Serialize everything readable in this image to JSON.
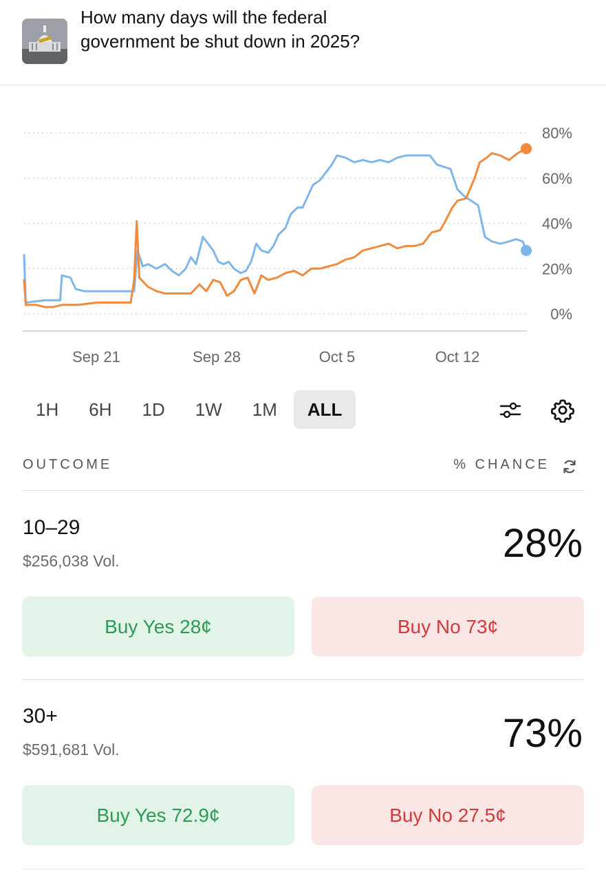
{
  "market": {
    "title": "How many days will the federal government be shut down in 2025?"
  },
  "chart_data": {
    "type": "line",
    "y_ticks": [
      "80%",
      "60%",
      "40%",
      "20%",
      "0%"
    ],
    "x_ticks": [
      {
        "label": "Sep 21",
        "day": 3
      },
      {
        "label": "Sep 28",
        "day": 10
      },
      {
        "label": "Oct 5",
        "day": 17
      },
      {
        "label": "Oct 12",
        "day": 24
      }
    ],
    "ylim": [
      0,
      80
    ],
    "xlim": [
      -1.2,
      28
    ],
    "grid": true,
    "series": [
      {
        "color": "#7fb6ea",
        "points": [
          [
            -1.2,
            26
          ],
          [
            -1.1,
            5
          ],
          [
            0,
            6
          ],
          [
            0.9,
            6
          ],
          [
            1,
            17
          ],
          [
            1.5,
            16
          ],
          [
            1.8,
            11
          ],
          [
            2.3,
            10
          ],
          [
            3,
            10
          ],
          [
            4,
            10
          ],
          [
            5.2,
            10
          ],
          [
            5.4,
            28
          ],
          [
            5.7,
            21
          ],
          [
            6,
            22
          ],
          [
            6.5,
            20
          ],
          [
            7,
            22
          ],
          [
            7.4,
            19
          ],
          [
            7.8,
            17
          ],
          [
            8.2,
            20
          ],
          [
            8.5,
            25
          ],
          [
            8.8,
            22
          ],
          [
            9.2,
            34
          ],
          [
            9.5,
            31
          ],
          [
            9.8,
            28
          ],
          [
            10.1,
            23
          ],
          [
            10.4,
            22
          ],
          [
            10.7,
            23
          ],
          [
            11,
            20
          ],
          [
            11.4,
            18
          ],
          [
            11.7,
            19
          ],
          [
            12,
            23
          ],
          [
            12.3,
            31
          ],
          [
            12.6,
            28
          ],
          [
            13,
            27
          ],
          [
            13.3,
            30
          ],
          [
            13.6,
            35
          ],
          [
            14,
            38
          ],
          [
            14.3,
            44
          ],
          [
            14.7,
            47
          ],
          [
            15,
            47
          ],
          [
            15.3,
            52
          ],
          [
            15.6,
            57
          ],
          [
            16,
            59
          ],
          [
            16.3,
            62
          ],
          [
            16.7,
            66
          ],
          [
            17,
            70
          ],
          [
            17.5,
            69
          ],
          [
            18,
            67
          ],
          [
            18.5,
            68
          ],
          [
            19,
            67
          ],
          [
            19.5,
            68
          ],
          [
            20,
            67
          ],
          [
            20.5,
            69
          ],
          [
            21,
            70
          ],
          [
            21.5,
            70
          ],
          [
            22,
            70
          ],
          [
            22.4,
            70
          ],
          [
            22.8,
            66
          ],
          [
            23.2,
            65
          ],
          [
            23.6,
            64
          ],
          [
            24,
            55
          ],
          [
            24.4,
            52
          ],
          [
            24.8,
            50
          ],
          [
            25.2,
            48
          ],
          [
            25.6,
            34
          ],
          [
            26,
            32
          ],
          [
            26.5,
            31
          ],
          [
            27,
            32
          ],
          [
            27.4,
            33
          ],
          [
            27.8,
            32
          ],
          [
            28,
            28
          ]
        ]
      },
      {
        "color": "#f08a3c",
        "points": [
          [
            -1.2,
            15
          ],
          [
            -1.1,
            4
          ],
          [
            -0.5,
            4
          ],
          [
            0,
            3
          ],
          [
            0.5,
            3
          ],
          [
            1,
            4
          ],
          [
            2,
            4
          ],
          [
            3,
            5
          ],
          [
            4,
            5
          ],
          [
            5,
            5
          ],
          [
            5.2,
            15
          ],
          [
            5.35,
            41
          ],
          [
            5.5,
            16
          ],
          [
            6,
            12
          ],
          [
            6.5,
            10
          ],
          [
            7,
            9
          ],
          [
            7.5,
            9
          ],
          [
            8,
            9
          ],
          [
            8.5,
            9
          ],
          [
            9,
            13
          ],
          [
            9.4,
            10
          ],
          [
            9.8,
            15
          ],
          [
            10.2,
            14
          ],
          [
            10.6,
            8
          ],
          [
            11,
            10
          ],
          [
            11.4,
            15
          ],
          [
            11.8,
            16
          ],
          [
            12.2,
            9
          ],
          [
            12.6,
            17
          ],
          [
            13,
            15
          ],
          [
            13.5,
            16
          ],
          [
            14,
            18
          ],
          [
            14.5,
            19
          ],
          [
            15,
            17
          ],
          [
            15.5,
            20
          ],
          [
            16,
            20
          ],
          [
            16.5,
            21
          ],
          [
            17,
            22
          ],
          [
            17.5,
            24
          ],
          [
            18,
            25
          ],
          [
            18.5,
            28
          ],
          [
            19,
            29
          ],
          [
            19.5,
            30
          ],
          [
            20,
            31
          ],
          [
            20.5,
            29
          ],
          [
            21,
            30
          ],
          [
            21.5,
            30
          ],
          [
            22,
            31
          ],
          [
            22.5,
            36
          ],
          [
            23,
            37
          ],
          [
            23.3,
            41
          ],
          [
            23.7,
            47
          ],
          [
            24,
            50
          ],
          [
            24.5,
            51
          ],
          [
            25,
            60
          ],
          [
            25.3,
            67
          ],
          [
            25.7,
            69
          ],
          [
            26,
            71
          ],
          [
            26.5,
            70
          ],
          [
            27,
            68
          ],
          [
            27.5,
            71
          ],
          [
            28,
            73
          ]
        ]
      }
    ]
  },
  "ranges": [
    {
      "label": "1H",
      "active": false
    },
    {
      "label": "6H",
      "active": false
    },
    {
      "label": "1D",
      "active": false
    },
    {
      "label": "1W",
      "active": false
    },
    {
      "label": "1M",
      "active": false
    },
    {
      "label": "ALL",
      "active": true
    }
  ],
  "toolbar": {
    "filter_icon": "sliders-icon",
    "settings_icon": "gear-icon"
  },
  "table": {
    "outcome_header": "OUTCOME",
    "chance_header": "% CHANCE",
    "refresh_icon": "refresh-icon"
  },
  "outcomes": [
    {
      "name": "10–29",
      "volume": "$256,038 Vol.",
      "chance": "28%",
      "buy_yes": "Buy Yes 28¢",
      "buy_no": "Buy No 73¢"
    },
    {
      "name": "30+",
      "volume": "$591,681 Vol.",
      "chance": "73%",
      "buy_yes": "Buy Yes 72.9¢",
      "buy_no": "Buy No 27.5¢"
    }
  ],
  "colors": {
    "yes_green": "#2f9a55",
    "no_red": "#d03a3a",
    "series_blue": "#7fb6ea",
    "series_orange": "#f08a3c"
  }
}
